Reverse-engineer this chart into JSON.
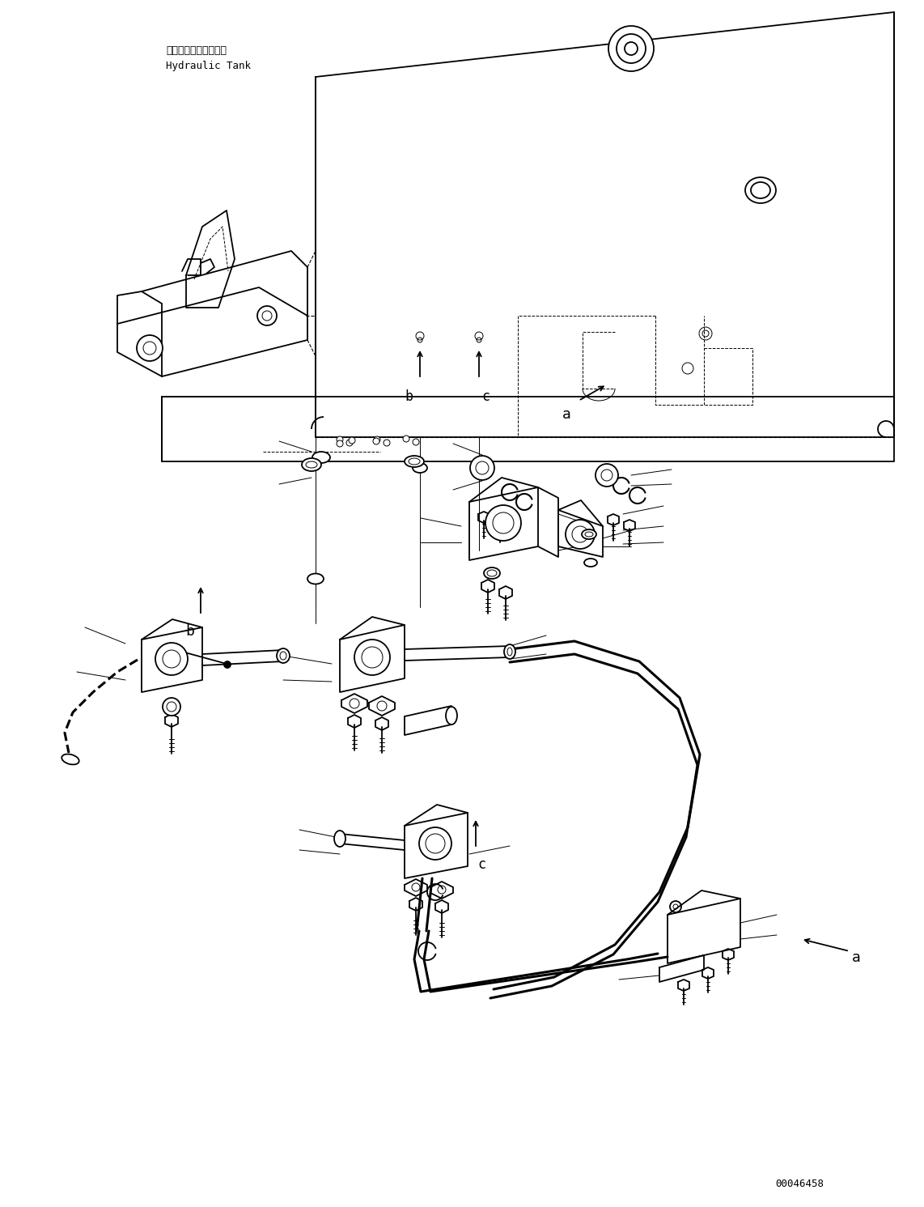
{
  "background_color": "#ffffff",
  "line_color": "#000000",
  "fig_width": 11.42,
  "fig_height": 14.91,
  "dpi": 100,
  "label_japanese": "ハイドロリックタンク",
  "label_english": "Hydraulic Tank",
  "label_font_size": 9.0,
  "part_number": "00046458",
  "part_number_fontsize": 9,
  "tank_color": "#000000",
  "lw_main": 1.3,
  "lw_thin": 0.7,
  "lw_thick": 2.2,
  "lw_dashed": 0.8
}
